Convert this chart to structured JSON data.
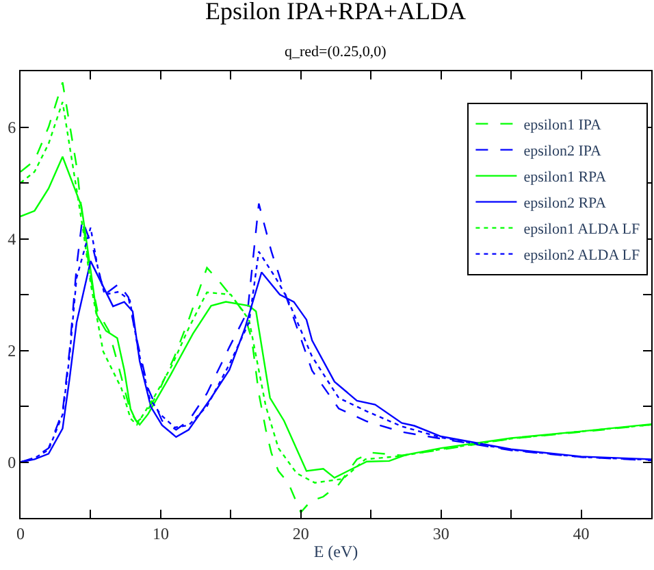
{
  "chart_data": {
    "type": "line",
    "title": "Epsilon IPA+RPA+ALDA",
    "subtitle": "q_red=(0.25,0,0)",
    "xlabel": "E (eV)",
    "xlim": [
      0,
      45
    ],
    "ylim": [
      -1,
      7
    ],
    "xticks": [
      0,
      {
        "value": 5,
        "label": null
      },
      10,
      {
        "value": 15,
        "label": null
      },
      20,
      {
        "value": 25,
        "label": null
      },
      30,
      {
        "value": 35,
        "label": null
      },
      40,
      {
        "value": 45,
        "label": null
      }
    ],
    "yticks": [
      {
        "value": -1,
        "label": null
      },
      0,
      {
        "value": 1,
        "label": null
      },
      2,
      {
        "value": 3,
        "label": null
      },
      4,
      {
        "value": 5,
        "label": null
      },
      6,
      {
        "value": 7,
        "label": null
      }
    ],
    "legend": "top right",
    "series": [
      {
        "name": "epsilon1 IPA",
        "color": "#00ff00",
        "line_style": "dashed",
        "x": [
          0,
          1,
          2,
          3,
          4,
          4.5,
          5,
          5.5,
          6.3,
          6.9,
          7.85,
          8.3,
          8.8,
          9.8,
          11,
          12,
          13.3,
          14.3,
          15.9,
          16.5,
          17,
          17.5,
          17.9,
          18.4,
          19.1,
          20,
          20.7,
          21.6,
          22.7,
          24,
          25,
          27.2,
          30,
          35,
          40,
          45
        ],
        "values": [
          5.2,
          5.4,
          6.0,
          6.8,
          5.3,
          4.2,
          3.3,
          2.7,
          2.35,
          1.8,
          0.9,
          0.72,
          0.82,
          1.23,
          1.9,
          2.55,
          3.48,
          3.2,
          2.7,
          2.2,
          1.23,
          0.58,
          0.16,
          -0.16,
          -0.37,
          -0.9,
          -0.7,
          -0.62,
          -0.4,
          0.05,
          0.17,
          0.12,
          0.22,
          0.42,
          0.54,
          0.67
        ]
      },
      {
        "name": "epsilon2 IPA",
        "color": "#0000ff",
        "line_style": "dashed",
        "x": [
          0,
          1,
          2,
          3,
          3.5,
          4,
          4.4,
          5.2,
          6,
          7,
          7.7,
          8.2,
          9.1,
          10.1,
          11.1,
          12,
          13.3,
          14.9,
          16.2,
          17,
          17.9,
          18.9,
          20.8,
          22.7,
          24.7,
          27.2,
          30,
          35,
          40,
          45
        ],
        "values": [
          0,
          0.08,
          0.25,
          0.9,
          2.0,
          3.5,
          4.34,
          3.8,
          3.0,
          3.19,
          2.95,
          2.3,
          1.32,
          0.74,
          0.58,
          0.74,
          1.23,
          2.06,
          2.7,
          4.63,
          3.77,
          3.0,
          1.64,
          0.96,
          0.73,
          0.54,
          0.42,
          0.21,
          0.09,
          0.03
        ]
      },
      {
        "name": "epsilon1 RPA",
        "color": "#00ff00",
        "line_style": "solid",
        "x": [
          0,
          1,
          2,
          3,
          4.35,
          5,
          5.45,
          6.1,
          6.9,
          7.4,
          7.85,
          8.2,
          8.5,
          9.1,
          10.7,
          12.3,
          13.6,
          14.65,
          16.3,
          16.8,
          17.8,
          18.8,
          20.4,
          21.6,
          22.4,
          24.7,
          26.3,
          27.5,
          30,
          35,
          40,
          45
        ],
        "values": [
          4.4,
          4.5,
          4.9,
          5.47,
          4.58,
          3.44,
          2.63,
          2.35,
          2.22,
          1.65,
          0.95,
          0.76,
          0.67,
          0.86,
          1.56,
          2.3,
          2.8,
          2.87,
          2.8,
          2.7,
          1.15,
          0.74,
          -0.16,
          -0.12,
          -0.28,
          0.01,
          0.02,
          0.13,
          0.25,
          0.43,
          0.55,
          0.68
        ]
      },
      {
        "name": "epsilon2 RPA",
        "color": "#0000ff",
        "line_style": "solid",
        "x": [
          0,
          1,
          2,
          3,
          3.5,
          4,
          5,
          6.6,
          7.4,
          8,
          8.5,
          9.3,
          10.1,
          11.1,
          12,
          13.6,
          14.9,
          16,
          17.2,
          18.5,
          19.5,
          20.4,
          20.8,
          22.4,
          24,
          25.3,
          27.2,
          28.1,
          30,
          35,
          40,
          45
        ],
        "values": [
          0,
          0.05,
          0.15,
          0.6,
          1.5,
          2.5,
          3.6,
          2.79,
          2.87,
          2.7,
          1.81,
          0.99,
          0.66,
          0.45,
          0.58,
          1.15,
          1.65,
          2.39,
          3.4,
          3.0,
          2.87,
          2.55,
          2.18,
          1.44,
          1.1,
          1.03,
          0.7,
          0.65,
          0.46,
          0.23,
          0.1,
          0.05
        ]
      },
      {
        "name": "epsilon1 ALDA LF",
        "color": "#00ff00",
        "line_style": "dotted",
        "x": [
          0,
          1,
          2,
          3,
          4.5,
          5,
          5.9,
          7.2,
          7.85,
          8.3,
          9.5,
          10.8,
          12,
          13.3,
          15,
          16.3,
          17.5,
          18.4,
          19.7,
          21,
          23,
          24.6,
          27.2,
          30,
          35,
          40,
          45
        ],
        "values": [
          5.0,
          5.2,
          5.7,
          6.45,
          4.1,
          3.2,
          1.98,
          1.32,
          0.78,
          0.67,
          1.15,
          1.73,
          2.4,
          3.04,
          3.0,
          2.55,
          1.0,
          0.25,
          -0.2,
          -0.37,
          -0.3,
          0.05,
          0.11,
          0.23,
          0.42,
          0.55,
          0.67
        ]
      },
      {
        "name": "epsilon2 ALDA LF",
        "color": "#0000ff",
        "line_style": "dotted",
        "x": [
          0,
          1,
          2,
          3,
          3.5,
          4,
          5,
          5.5,
          6,
          7,
          7.8,
          8.4,
          9.2,
          10,
          11,
          12,
          13.3,
          14.9,
          16.3,
          17,
          18.2,
          19,
          20.8,
          22.7,
          24.7,
          27.2,
          30,
          35,
          40,
          45
        ],
        "values": [
          0,
          0.07,
          0.22,
          0.85,
          1.9,
          3.3,
          4.2,
          3.5,
          3.0,
          3.05,
          2.9,
          2.0,
          1.15,
          0.85,
          0.62,
          0.66,
          1.0,
          1.75,
          2.5,
          3.77,
          3.3,
          2.95,
          1.89,
          1.15,
          0.91,
          0.64,
          0.44,
          0.22,
          0.09,
          0.04
        ]
      }
    ]
  }
}
